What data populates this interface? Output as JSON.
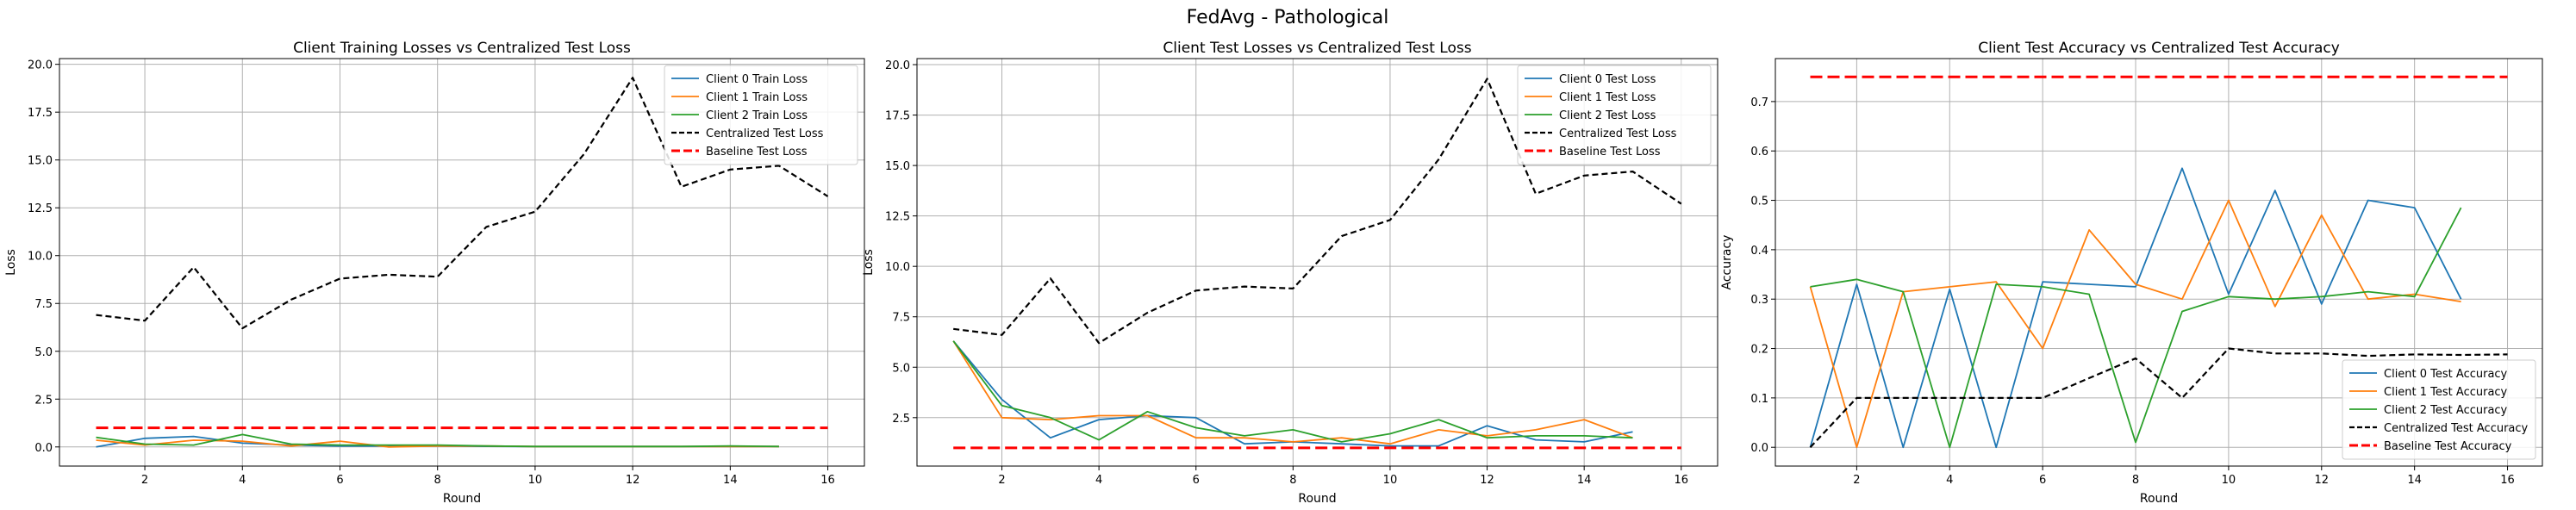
{
  "figure": {
    "suptitle": "FedAvg - Pathological"
  },
  "chart_data": [
    {
      "type": "line",
      "title": "Client Training Losses vs Centralized Test Loss",
      "xlabel": "Round",
      "ylabel": "Loss",
      "xlim": [
        0.25,
        16.75
      ],
      "ylim": [
        -1.0,
        20.3
      ],
      "xticks": [
        2,
        4,
        6,
        8,
        10,
        12,
        14,
        16
      ],
      "yticks": [
        0.0,
        2.5,
        5.0,
        7.5,
        10.0,
        12.5,
        15.0,
        17.5,
        20.0
      ],
      "ytick_labels": [
        "0.0",
        "2.5",
        "5.0",
        "7.5",
        "10.0",
        "12.5",
        "15.0",
        "17.5",
        "20.0"
      ],
      "grid": true,
      "legend_position": "top-right",
      "series": [
        {
          "name": "Client 0 Train Loss",
          "color": "#1f77b4",
          "dash": "solid",
          "x": [
            1,
            2,
            3,
            4,
            5,
            6,
            7,
            8,
            9,
            10,
            11,
            12,
            13,
            14,
            15
          ],
          "y": [
            0.0,
            0.45,
            0.55,
            0.2,
            0.1,
            0.05,
            0.05,
            0.05,
            0.03,
            0.02,
            0.02,
            0.02,
            0.02,
            0.02,
            0.02
          ]
        },
        {
          "name": "Client 1 Train Loss",
          "color": "#ff7f0e",
          "dash": "solid",
          "x": [
            1,
            2,
            3,
            4,
            5,
            6,
            7,
            8,
            9,
            10,
            11,
            12,
            13,
            14,
            15
          ],
          "y": [
            0.35,
            0.1,
            0.35,
            0.3,
            0.05,
            0.3,
            0.0,
            0.05,
            0.05,
            0.02,
            0.02,
            0.02,
            0.02,
            0.02,
            0.02
          ]
        },
        {
          "name": "Client 2 Train Loss",
          "color": "#2ca02c",
          "dash": "solid",
          "x": [
            1,
            2,
            3,
            4,
            5,
            6,
            7,
            8,
            9,
            10,
            11,
            12,
            13,
            14,
            15
          ],
          "y": [
            0.5,
            0.15,
            0.1,
            0.65,
            0.15,
            0.1,
            0.1,
            0.1,
            0.05,
            0.02,
            0.02,
            0.02,
            0.02,
            0.05,
            0.02
          ]
        },
        {
          "name": "Centralized Test Loss",
          "color": "#000000",
          "dash": "dashed",
          "x": [
            1,
            2,
            3,
            4,
            5,
            6,
            7,
            8,
            9,
            10,
            11,
            12,
            13,
            14,
            15,
            16
          ],
          "y": [
            6.9,
            6.6,
            9.4,
            6.2,
            7.7,
            8.8,
            9.0,
            8.9,
            11.5,
            12.3,
            15.3,
            19.3,
            13.6,
            14.5,
            14.7,
            13.1
          ]
        },
        {
          "name": "Baseline Test Loss",
          "color": "#ff0000",
          "dash": "baseline",
          "x": [
            1,
            16
          ],
          "y": [
            1.0,
            1.0
          ]
        }
      ]
    },
    {
      "type": "line",
      "title": "Client Test Losses vs Centralized Test Loss",
      "xlabel": "Round",
      "ylabel": "Loss",
      "xlim": [
        0.25,
        16.75
      ],
      "ylim": [
        0.1,
        20.3
      ],
      "xticks": [
        2,
        4,
        6,
        8,
        10,
        12,
        14,
        16
      ],
      "yticks": [
        2.5,
        5.0,
        7.5,
        10.0,
        12.5,
        15.0,
        17.5,
        20.0
      ],
      "ytick_labels": [
        "2.5",
        "5.0",
        "7.5",
        "10.0",
        "12.5",
        "15.0",
        "17.5",
        "20.0"
      ],
      "grid": true,
      "legend_position": "top-right",
      "series": [
        {
          "name": "Client 0 Test Loss",
          "color": "#1f77b4",
          "dash": "solid",
          "x": [
            1,
            2,
            3,
            4,
            5,
            6,
            7,
            8,
            9,
            10,
            11,
            12,
            13,
            14,
            15
          ],
          "y": [
            6.3,
            3.4,
            1.5,
            2.4,
            2.6,
            2.5,
            1.2,
            1.3,
            1.2,
            1.1,
            1.1,
            2.1,
            1.4,
            1.3,
            1.8
          ]
        },
        {
          "name": "Client 1 Test Loss",
          "color": "#ff7f0e",
          "dash": "solid",
          "x": [
            1,
            2,
            3,
            4,
            5,
            6,
            7,
            8,
            9,
            10,
            11,
            12,
            13,
            14,
            15
          ],
          "y": [
            6.3,
            2.5,
            2.4,
            2.6,
            2.6,
            1.5,
            1.5,
            1.3,
            1.5,
            1.2,
            1.9,
            1.6,
            1.9,
            2.4,
            1.5
          ]
        },
        {
          "name": "Client 2 Test Loss",
          "color": "#2ca02c",
          "dash": "solid",
          "x": [
            1,
            2,
            3,
            4,
            5,
            6,
            7,
            8,
            9,
            10,
            11,
            12,
            13,
            14,
            15
          ],
          "y": [
            6.3,
            3.1,
            2.5,
            1.4,
            2.8,
            2.0,
            1.6,
            1.9,
            1.3,
            1.7,
            2.4,
            1.5,
            1.6,
            1.6,
            1.5
          ]
        },
        {
          "name": "Centralized Test Loss",
          "color": "#000000",
          "dash": "dashed",
          "x": [
            1,
            2,
            3,
            4,
            5,
            6,
            7,
            8,
            9,
            10,
            11,
            12,
            13,
            14,
            15,
            16
          ],
          "y": [
            6.9,
            6.6,
            9.4,
            6.2,
            7.7,
            8.8,
            9.0,
            8.9,
            11.5,
            12.3,
            15.3,
            19.3,
            13.6,
            14.5,
            14.7,
            13.1
          ]
        },
        {
          "name": "Baseline Test Loss",
          "color": "#ff0000",
          "dash": "baseline",
          "x": [
            1,
            16
          ],
          "y": [
            1.0,
            1.0
          ]
        }
      ]
    },
    {
      "type": "line",
      "title": "Client Test Accuracy vs Centralized Test Accuracy",
      "xlabel": "Round",
      "ylabel": "Accuracy",
      "xlim": [
        0.25,
        16.75
      ],
      "ylim": [
        -0.038,
        0.787
      ],
      "xticks": [
        2,
        4,
        6,
        8,
        10,
        12,
        14,
        16
      ],
      "yticks": [
        0.0,
        0.1,
        0.2,
        0.3,
        0.4,
        0.5,
        0.6,
        0.7
      ],
      "ytick_labels": [
        "0.0",
        "0.1",
        "0.2",
        "0.3",
        "0.4",
        "0.5",
        "0.6",
        "0.7"
      ],
      "grid": true,
      "legend_position": "bottom-right",
      "series": [
        {
          "name": "Client 0 Test Accuracy",
          "color": "#1f77b4",
          "dash": "solid",
          "x": [
            1,
            2,
            3,
            4,
            5,
            6,
            7,
            8,
            9,
            10,
            11,
            12,
            13,
            14,
            15
          ],
          "y": [
            0.0,
            0.33,
            0.0,
            0.32,
            0.0,
            0.335,
            0.33,
            0.325,
            0.565,
            0.31,
            0.52,
            0.29,
            0.5,
            0.485,
            0.3
          ]
        },
        {
          "name": "Client 1 Test Accuracy",
          "color": "#ff7f0e",
          "dash": "solid",
          "x": [
            1,
            2,
            3,
            4,
            5,
            6,
            7,
            8,
            9,
            10,
            11,
            12,
            13,
            14,
            15
          ],
          "y": [
            0.325,
            0.0,
            0.315,
            0.325,
            0.335,
            0.2,
            0.44,
            0.33,
            0.3,
            0.5,
            0.285,
            0.47,
            0.3,
            0.31,
            0.295
          ]
        },
        {
          "name": "Client 2 Test Accuracy",
          "color": "#2ca02c",
          "dash": "solid",
          "x": [
            1,
            2,
            3,
            4,
            5,
            6,
            7,
            8,
            9,
            10,
            11,
            12,
            13,
            14,
            15
          ],
          "y": [
            0.325,
            0.34,
            0.315,
            0.0,
            0.33,
            0.325,
            0.31,
            0.01,
            0.275,
            0.305,
            0.3,
            0.305,
            0.315,
            0.305,
            0.485
          ]
        },
        {
          "name": "Centralized Test Accuracy",
          "color": "#000000",
          "dash": "dashed",
          "x": [
            1,
            2,
            3,
            4,
            5,
            6,
            7,
            8,
            9,
            10,
            11,
            12,
            13,
            14,
            15,
            16
          ],
          "y": [
            0.0,
            0.1,
            0.1,
            0.1,
            0.1,
            0.1,
            0.14,
            0.18,
            0.1,
            0.2,
            0.19,
            0.19,
            0.185,
            0.188,
            0.187,
            0.188
          ]
        },
        {
          "name": "Baseline Test Accuracy",
          "color": "#ff0000",
          "dash": "baseline",
          "x": [
            1,
            16
          ],
          "y": [
            0.75,
            0.75
          ]
        }
      ]
    }
  ]
}
